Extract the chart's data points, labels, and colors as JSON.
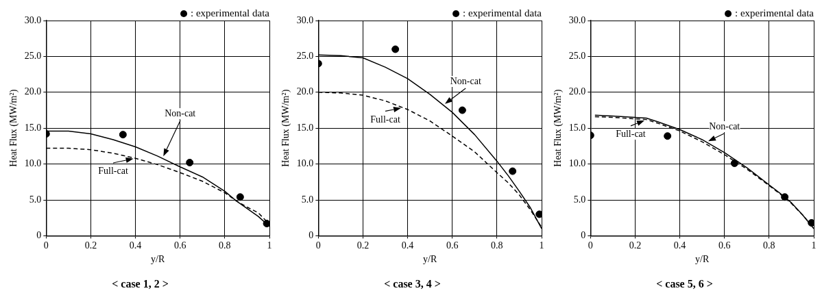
{
  "chart_data": [
    {
      "type": "line",
      "title": "< case 1, 2 >",
      "xlabel": "y/R",
      "ylabel": "Heat Flux (MW/m²)",
      "xlim": [
        0,
        1
      ],
      "ylim": [
        0,
        30
      ],
      "xticks": [
        0,
        0.2,
        0.4,
        0.6,
        0.8,
        1
      ],
      "yticks": [
        {
          "value": 0,
          "label": "0"
        },
        {
          "value": 5,
          "label": "5.0"
        },
        {
          "value": 10,
          "label": "10.0"
        },
        {
          "value": 15,
          "label": "15.0"
        },
        {
          "value": 20,
          "label": "20.0"
        },
        {
          "value": 25,
          "label": "25.0"
        },
        {
          "value": 30,
          "label": "30.0"
        }
      ],
      "grid": true,
      "legend": "top right",
      "series": [
        {
          "name": ": experimental data",
          "type": "scatter",
          "marker": "circle",
          "color": "#000000",
          "x": [
            0,
            0.344,
            0.643,
            0.869,
            0.988
          ],
          "values": [
            14.2,
            14.1,
            10.2,
            5.4,
            1.7
          ]
        },
        {
          "name": "Non-cat",
          "type": "line",
          "line_style": "solid",
          "color": "#000000",
          "x": [
            0,
            0.1,
            0.2,
            0.3,
            0.4,
            0.5,
            0.6,
            0.7,
            0.8,
            0.85,
            0.9,
            0.95,
            1
          ],
          "values": [
            14.6,
            14.6,
            14.2,
            13.4,
            12.4,
            11.1,
            9.6,
            8.2,
            6.2,
            4.9,
            3.8,
            2.7,
            1.3
          ]
        },
        {
          "name": "Full-cat",
          "type": "line",
          "line_style": "dashed",
          "color": "#000000",
          "x": [
            0,
            0.1,
            0.2,
            0.3,
            0.4,
            0.5,
            0.6,
            0.7,
            0.8,
            0.85,
            0.9,
            0.95,
            1
          ],
          "values": [
            12.2,
            12.2,
            12.0,
            11.5,
            10.8,
            9.9,
            8.8,
            7.6,
            6.0,
            4.9,
            4.0,
            3.2,
            1.6
          ]
        }
      ]
    },
    {
      "type": "line",
      "title": "< case 3, 4 >",
      "xlabel": "y/R",
      "ylabel": "Heat Flux (MW/m²)",
      "xlim": [
        0,
        1
      ],
      "ylim": [
        0,
        30
      ],
      "xticks": [
        0,
        0.2,
        0.4,
        0.6,
        0.8,
        1
      ],
      "yticks": [
        {
          "value": 0,
          "label": "0"
        },
        {
          "value": 5,
          "label": "5.0"
        },
        {
          "value": 10,
          "label": "10.0"
        },
        {
          "value": 15,
          "label": "15.0"
        },
        {
          "value": 20,
          "label": "20.0"
        },
        {
          "value": 25,
          "label": "25.0"
        },
        {
          "value": 30,
          "label": "30.0"
        }
      ],
      "grid": true,
      "legend": "top right",
      "series": [
        {
          "name": ": experimental data",
          "type": "scatter",
          "marker": "circle",
          "color": "#000000",
          "x": [
            0,
            0.345,
            0.645,
            0.87,
            0.99
          ],
          "values": [
            24,
            26,
            17.5,
            9,
            3
          ]
        },
        {
          "name": "Non-cat",
          "type": "line",
          "line_style": "solid",
          "color": "#000000",
          "x": [
            0,
            0.1,
            0.2,
            0.3,
            0.4,
            0.5,
            0.6,
            0.7,
            0.8,
            0.85,
            0.9,
            0.95,
            1
          ],
          "values": [
            25.2,
            25.1,
            24.8,
            23.5,
            21.9,
            19.7,
            17.2,
            14.1,
            10.4,
            8.4,
            6.2,
            3.9,
            1.0
          ]
        },
        {
          "name": "Full-cat",
          "type": "line",
          "line_style": "dashed",
          "color": "#000000",
          "x": [
            0,
            0.1,
            0.2,
            0.3,
            0.4,
            0.5,
            0.6,
            0.7,
            0.8,
            0.85,
            0.9,
            0.95,
            1
          ],
          "values": [
            20,
            19.9,
            19.6,
            18.8,
            17.6,
            16.0,
            13.9,
            11.7,
            8.8,
            7.4,
            5.7,
            3.6,
            1.2
          ]
        }
      ]
    },
    {
      "type": "line",
      "title": "< case 5, 6 >",
      "xlabel": "y/R",
      "ylabel": "Heat Flux (MW/m²)",
      "xlim": [
        0,
        1
      ],
      "ylim": [
        0,
        30
      ],
      "xticks": [
        0,
        0.2,
        0.4,
        0.6,
        0.8,
        1
      ],
      "yticks": [
        {
          "value": 0,
          "label": "0"
        },
        {
          "value": 5,
          "label": "5.0"
        },
        {
          "value": 10,
          "label": "10.0"
        },
        {
          "value": 15,
          "label": "15.0"
        },
        {
          "value": 20,
          "label": "20.0"
        },
        {
          "value": 25,
          "label": "25.0"
        },
        {
          "value": 30,
          "label": "30.0"
        }
      ],
      "grid": true,
      "legend": "top right",
      "series": [
        {
          "name": ": experimental data",
          "type": "scatter",
          "marker": "circle",
          "color": "#000000",
          "x": [
            0,
            0.345,
            0.645,
            0.87,
            0.99
          ],
          "values": [
            14,
            13.9,
            10.1,
            5.4,
            1.8
          ]
        },
        {
          "name": "Non-cat",
          "type": "line",
          "line_style": "solid",
          "color": "#000000",
          "x": [
            0.02,
            0.1,
            0.2,
            0.25,
            0.3,
            0.4,
            0.5,
            0.6,
            0.7,
            0.8,
            0.85,
            0.9,
            0.95,
            1
          ],
          "values": [
            16.8,
            16.7,
            16.5,
            16.4,
            15.9,
            14.8,
            13.4,
            11.6,
            9.5,
            7.1,
            5.9,
            4.6,
            2.9,
            1.0
          ]
        },
        {
          "name": "Full-cat",
          "type": "line",
          "line_style": "dashed",
          "color": "#000000",
          "x": [
            0.02,
            0.1,
            0.2,
            0.25,
            0.3,
            0.4,
            0.5,
            0.6,
            0.7,
            0.8,
            0.85,
            0.9,
            0.95,
            1
          ],
          "values": [
            16.6,
            16.5,
            16.3,
            16.2,
            15.7,
            14.6,
            13.1,
            11.3,
            9.3,
            7.0,
            5.8,
            4.5,
            2.9,
            1.1
          ]
        }
      ]
    }
  ]
}
